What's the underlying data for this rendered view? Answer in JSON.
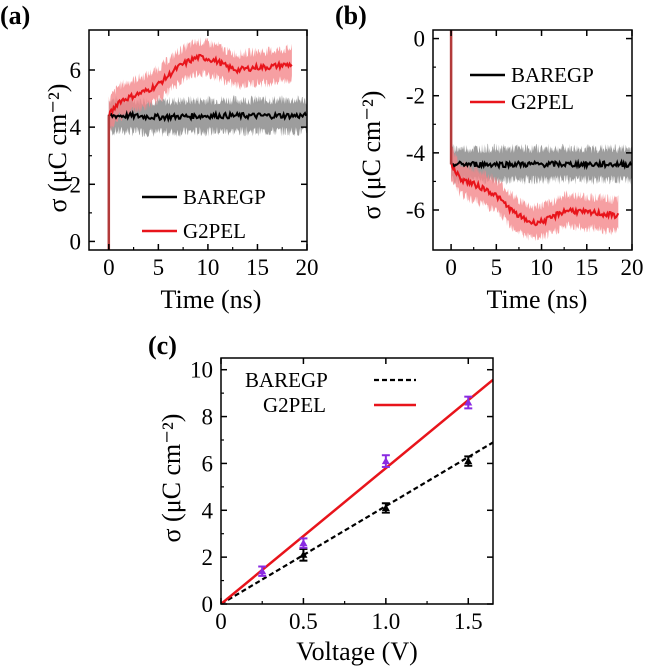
{
  "colors": {
    "baregp": "#000000",
    "g2pel": "#e8141b",
    "g2pel_band": "#f4878b",
    "baregp_band": "#8c8c8c",
    "marker_g2pel": "#8a2be2"
  },
  "chart_data": [
    {
      "panel": "(a)",
      "type": "line",
      "xlabel": "Time (ns)",
      "ylabel": "σ (μC cm⁻²)",
      "xlim": [
        -2,
        20
      ],
      "ylim": [
        -0.3,
        7.4
      ],
      "xticks": [
        0,
        5,
        10,
        15,
        20
      ],
      "yticks": [
        0,
        2,
        4,
        6
      ],
      "xtick_labels": [
        "0",
        "5",
        "10",
        "15",
        "20"
      ],
      "ytick_labels": [
        "0",
        "2",
        "4",
        "6"
      ],
      "legend": {
        "placement": "bottom-right",
        "entries": [
          "BAREGP",
          "G2PEL"
        ]
      },
      "series": [
        {
          "name": "BAREGP",
          "color": "#000000",
          "band": 0.55,
          "points": [
            [
              0,
              4.4
            ],
            [
              2,
              4.4
            ],
            [
              5,
              4.35
            ],
            [
              10,
              4.4
            ],
            [
              15,
              4.4
            ],
            [
              18.5,
              4.4
            ],
            [
              20,
              4.4
            ]
          ]
        },
        {
          "name": "G2PEL",
          "color": "#e8141b",
          "band": 0.55,
          "points": [
            [
              0,
              4.4
            ],
            [
              1,
              4.9
            ],
            [
              2.5,
              5.1
            ],
            [
              4,
              5.3
            ],
            [
              5,
              5.5
            ],
            [
              6,
              5.8
            ],
            [
              7,
              6.1
            ],
            [
              8,
              6.3
            ],
            [
              9,
              6.45
            ],
            [
              10,
              6.4
            ],
            [
              11,
              6.3
            ],
            [
              12,
              6.1
            ],
            [
              13,
              6.0
            ],
            [
              14,
              6.05
            ],
            [
              15,
              6.1
            ],
            [
              16,
              6.1
            ],
            [
              17,
              6.15
            ],
            [
              18.5,
              6.2
            ]
          ]
        }
      ]
    },
    {
      "panel": "(b)",
      "type": "line",
      "xlabel": "Time (ns)",
      "ylabel": "σ (μC cm⁻²)",
      "xlim": [
        -2,
        20
      ],
      "ylim": [
        -7.4,
        0.3
      ],
      "xticks": [
        0,
        5,
        10,
        15,
        20
      ],
      "yticks": [
        0,
        -2,
        -4,
        -6
      ],
      "xtick_labels": [
        "0",
        "5",
        "10",
        "15",
        "20"
      ],
      "ytick_labels": [
        "0",
        "-2",
        "-4",
        "-6"
      ],
      "legend": {
        "placement": "top-right",
        "entries": [
          "BAREGP",
          "G2PEL"
        ]
      },
      "series": [
        {
          "name": "BAREGP",
          "color": "#000000",
          "band": 0.55,
          "points": [
            [
              0,
              -4.4
            ],
            [
              2,
              -4.4
            ],
            [
              5,
              -4.4
            ],
            [
              10,
              -4.4
            ],
            [
              15,
              -4.4
            ],
            [
              18.5,
              -4.4
            ],
            [
              20,
              -4.4
            ]
          ]
        },
        {
          "name": "G2PEL",
          "color": "#e8141b",
          "band": 0.55,
          "points": [
            [
              0,
              -4.4
            ],
            [
              1,
              -4.9
            ],
            [
              2.5,
              -5.1
            ],
            [
              4,
              -5.3
            ],
            [
              5,
              -5.5
            ],
            [
              6,
              -5.8
            ],
            [
              7,
              -6.1
            ],
            [
              8,
              -6.3
            ],
            [
              9,
              -6.45
            ],
            [
              10,
              -6.4
            ],
            [
              11,
              -6.3
            ],
            [
              12,
              -6.1
            ],
            [
              13,
              -6.0
            ],
            [
              14,
              -6.05
            ],
            [
              15,
              -6.1
            ],
            [
              16,
              -6.1
            ],
            [
              17,
              -6.15
            ],
            [
              18.5,
              -6.2
            ]
          ]
        }
      ]
    },
    {
      "panel": "(c)",
      "type": "scatter",
      "xlabel": "Voltage (V)",
      "ylabel": "σ (μC cm⁻²)",
      "xlim": [
        0,
        1.65
      ],
      "ylim": [
        0,
        10.5
      ],
      "xticks": [
        0,
        0.5,
        1.0,
        1.5
      ],
      "yticks": [
        0,
        2,
        4,
        6,
        8,
        10
      ],
      "xtick_labels": [
        "0",
        "0.5",
        "1.0",
        "1.5"
      ],
      "ytick_labels": [
        "0",
        "2",
        "4",
        "6",
        "8",
        "10"
      ],
      "legend": {
        "placement": "top-left",
        "entries": [
          "BAREGP",
          "G2PEL"
        ]
      },
      "series": [
        {
          "name": "BAREGP",
          "color": "#000000",
          "fit_slope": 4.18,
          "points": [
            [
              0.5,
              2.1
            ],
            [
              1.0,
              4.1
            ],
            [
              1.5,
              6.1
            ]
          ],
          "errors": [
            0.25,
            0.2,
            0.2
          ]
        },
        {
          "name": "G2PEL",
          "color": "#e8141b",
          "marker_color": "#8a2be2",
          "fit_slope": 5.8,
          "points": [
            [
              0.25,
              1.4
            ],
            [
              0.5,
              2.6
            ],
            [
              1.0,
              6.1
            ],
            [
              1.5,
              8.6
            ]
          ],
          "errors": [
            0.2,
            0.2,
            0.25,
            0.25
          ]
        }
      ]
    }
  ]
}
